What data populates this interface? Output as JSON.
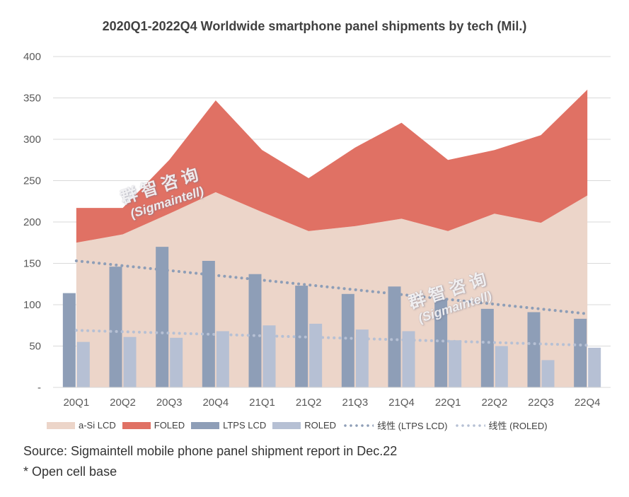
{
  "chart_data": {
    "type": "area+bar+trendline",
    "title": "2020Q1-2022Q4 Worldwide smartphone panel shipments by tech (Mil.)",
    "categories": [
      "20Q1",
      "20Q2",
      "20Q3",
      "20Q4",
      "21Q1",
      "21Q2",
      "21Q3",
      "21Q4",
      "22Q1",
      "22Q2",
      "22Q3",
      "22Q4"
    ],
    "ylim": [
      0,
      400
    ],
    "yticks": [
      {
        "value": 0,
        "label": "-"
      },
      {
        "value": 50,
        "label": "50"
      },
      {
        "value": 100,
        "label": "100"
      },
      {
        "value": 150,
        "label": "150"
      },
      {
        "value": 200,
        "label": "200"
      },
      {
        "value": 250,
        "label": "250"
      },
      {
        "value": 300,
        "label": "300"
      },
      {
        "value": 350,
        "label": "350"
      },
      {
        "value": 400,
        "label": "400"
      }
    ],
    "grid": true,
    "series": [
      {
        "name": "a-Si LCD",
        "kind": "stacked-area",
        "color": "#ecd5c9",
        "values": [
          175,
          185,
          210,
          236,
          212,
          189,
          195,
          204,
          189,
          210,
          199,
          232
        ]
      },
      {
        "name": "FOLED",
        "kind": "stacked-area",
        "color": "#e07164",
        "values": [
          42,
          32,
          65,
          111,
          75,
          64,
          95,
          116,
          86,
          77,
          106,
          128
        ]
      },
      {
        "name": "LTPS LCD",
        "kind": "bar",
        "color": "#8e9eb7",
        "values": [
          114,
          146,
          170,
          153,
          137,
          123,
          113,
          122,
          107,
          95,
          91,
          83
        ]
      },
      {
        "name": "ROLED",
        "kind": "bar",
        "color": "#b6c0d4",
        "values": [
          55,
          61,
          60,
          68,
          75,
          77,
          70,
          68,
          57,
          50,
          33,
          48
        ]
      },
      {
        "name": "线性 (LTPS LCD)",
        "kind": "trendline",
        "color": "#8e9eb7",
        "start": 153,
        "end": 89
      },
      {
        "name": "线性 (ROLED)",
        "kind": "trendline",
        "color": "#b6c0d4",
        "start": 69,
        "end": 51
      }
    ]
  },
  "source": "Source: Sigmaintell mobile phone panel shipment report in Dec.22",
  "note": "* Open cell base",
  "watermark": {
    "cn": "群智咨询",
    "en": "(Sigmaintell)"
  }
}
